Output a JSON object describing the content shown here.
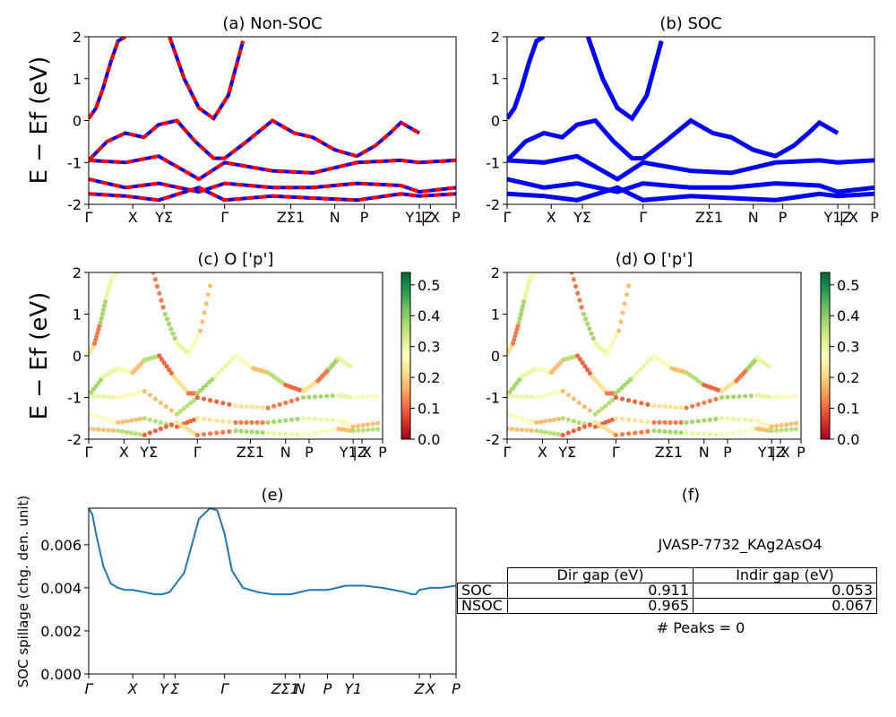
{
  "panels": {
    "a": {
      "title": "(a) Non-SOC",
      "ylabel": "E − Ef (eV)"
    },
    "b": {
      "title": "(b) SOC"
    },
    "c": {
      "title": "(c)  O ['p']",
      "ylabel": "E − Ef (eV)"
    },
    "d": {
      "title": "(d) O ['p']"
    },
    "e": {
      "title": "(e)",
      "ylabel": "SOC spillage (chg. den. unit)"
    },
    "f": {
      "title": "(f)"
    }
  },
  "kpath_labels": [
    "Γ",
    "X",
    "YΣ",
    "Γ",
    "ZΣ1",
    "N",
    "P",
    "Y1Z",
    "| X",
    "P"
  ],
  "kpath_labels_e": [
    "Γ",
    "X",
    "Y",
    "Σ",
    "Γ",
    "ZΣ1",
    "N",
    "P",
    "Y1",
    "Z",
    "X",
    "P"
  ],
  "colorbar": {
    "ticks": [
      "0.0",
      "0.1",
      "0.2",
      "0.3",
      "0.4",
      "0.5"
    ],
    "colormap": "RdYlGn"
  },
  "colors": {
    "nonsoc_a": "#0000ff",
    "nonsoc_b": "#ff0000",
    "soc": "#0000ff",
    "spillage": "#1f77b4"
  },
  "info": {
    "material": "JVASP-7732_KAg2AsO4",
    "col_headers": [
      "Dir gap (eV)",
      "Indir gap (eV)"
    ],
    "rows": [
      {
        "label": "SOC",
        "dir": "0.911",
        "indir": "0.053"
      },
      {
        "label": "NSOC",
        "dir": "0.965",
        "indir": "0.067"
      }
    ],
    "peaks": "# Peaks = 0"
  },
  "chart_data": [
    {
      "type": "line",
      "title": "(a) Non-SOC",
      "ylabel": "E − Ef (eV)",
      "ylim": [
        -2,
        2
      ],
      "yticks": [
        -2,
        -1,
        0,
        1,
        2
      ],
      "xticks": [
        "Γ",
        "X",
        "YΣ",
        "Γ",
        "ZΣ1",
        "N",
        "P",
        "Y1Z",
        "| X",
        "P"
      ],
      "series": [
        {
          "x": [
            0,
            0.02,
            0.04,
            0.06,
            0.08,
            0.1
          ],
          "y": [
            0.05,
            0.3,
            0.8,
            1.4,
            1.9,
            2.0
          ]
        },
        {
          "x": [
            0.22,
            0.26,
            0.3,
            0.34,
            0.38,
            0.42
          ],
          "y": [
            2.0,
            1.0,
            0.3,
            0.05,
            0.6,
            1.9
          ]
        },
        {
          "x": [
            0,
            0.05,
            0.1,
            0.15,
            0.19,
            0.24,
            0.29,
            0.34,
            0.37,
            0.43,
            0.5,
            0.56,
            0.61,
            0.67,
            0.73,
            0.78,
            0.82,
            0.85,
            0.9
          ],
          "y": [
            -0.95,
            -0.5,
            -0.3,
            -0.4,
            -0.1,
            0.0,
            -0.5,
            -0.9,
            -0.9,
            -0.5,
            0.0,
            -0.3,
            -0.4,
            -0.7,
            -0.85,
            -0.6,
            -0.3,
            -0.05,
            -0.3
          ]
        },
        {
          "x": [
            0,
            0.1,
            0.19,
            0.3,
            0.37,
            0.5,
            0.61,
            0.73,
            0.85,
            0.9,
            1.0
          ],
          "y": [
            -0.95,
            -1.0,
            -0.85,
            -1.4,
            -1.0,
            -1.2,
            -1.25,
            -1.0,
            -0.95,
            -1.0,
            -0.95
          ]
        },
        {
          "x": [
            0,
            0.1,
            0.19,
            0.3,
            0.37,
            0.5,
            0.61,
            0.73,
            0.85,
            0.9,
            1.0
          ],
          "y": [
            -1.4,
            -1.6,
            -1.5,
            -1.7,
            -1.5,
            -1.6,
            -1.6,
            -1.5,
            -1.55,
            -1.7,
            -1.6
          ]
        },
        {
          "x": [
            0,
            0.1,
            0.19,
            0.3,
            0.37,
            0.5,
            0.61,
            0.73,
            0.85,
            0.9,
            1.0
          ],
          "y": [
            -1.75,
            -1.8,
            -1.9,
            -1.6,
            -1.9,
            -1.8,
            -1.85,
            -1.9,
            -1.75,
            -1.8,
            -1.75
          ]
        }
      ]
    },
    {
      "type": "line",
      "title": "(b) SOC",
      "ylim": [
        -2,
        2
      ],
      "yticks": [
        -2,
        -1,
        0,
        1,
        2
      ],
      "xticks": [
        "Γ",
        "X",
        "YΣ",
        "Γ",
        "ZΣ1",
        "N",
        "P",
        "Y1Z",
        "| X",
        "P"
      ],
      "series": [
        {
          "x": [
            0,
            0.02,
            0.04,
            0.06,
            0.08,
            0.1
          ],
          "y": [
            0.05,
            0.3,
            0.8,
            1.4,
            1.9,
            2.0
          ]
        },
        {
          "x": [
            0.22,
            0.26,
            0.3,
            0.34,
            0.38,
            0.42
          ],
          "y": [
            2.0,
            1.0,
            0.3,
            0.05,
            0.6,
            1.9
          ]
        },
        {
          "x": [
            0,
            0.05,
            0.1,
            0.15,
            0.19,
            0.24,
            0.29,
            0.34,
            0.37,
            0.43,
            0.5,
            0.56,
            0.61,
            0.67,
            0.73,
            0.78,
            0.82,
            0.85,
            0.9
          ],
          "y": [
            -0.95,
            -0.5,
            -0.3,
            -0.4,
            -0.1,
            0.0,
            -0.5,
            -0.9,
            -0.9,
            -0.5,
            0.0,
            -0.3,
            -0.4,
            -0.7,
            -0.85,
            -0.6,
            -0.3,
            -0.05,
            -0.3
          ]
        },
        {
          "x": [
            0,
            0.1,
            0.19,
            0.3,
            0.37,
            0.5,
            0.61,
            0.73,
            0.85,
            0.9,
            1.0
          ],
          "y": [
            -0.95,
            -1.0,
            -0.85,
            -1.4,
            -1.0,
            -1.2,
            -1.25,
            -1.0,
            -0.95,
            -1.0,
            -0.95
          ]
        },
        {
          "x": [
            0,
            0.1,
            0.19,
            0.3,
            0.37,
            0.5,
            0.61,
            0.73,
            0.85,
            0.9,
            1.0
          ],
          "y": [
            -1.4,
            -1.6,
            -1.5,
            -1.7,
            -1.5,
            -1.6,
            -1.6,
            -1.5,
            -1.55,
            -1.7,
            -1.6
          ]
        },
        {
          "x": [
            0,
            0.1,
            0.19,
            0.3,
            0.37,
            0.5,
            0.61,
            0.73,
            0.85,
            0.9,
            1.0
          ],
          "y": [
            -1.75,
            -1.8,
            -1.9,
            -1.6,
            -1.9,
            -1.8,
            -1.85,
            -1.9,
            -1.75,
            -1.8,
            -1.75
          ]
        }
      ]
    },
    {
      "type": "scatter",
      "title": "(c)  O ['p']",
      "ylabel": "E − Ef (eV)",
      "ylim": [
        -2,
        2
      ],
      "yticks": [
        -2,
        -1,
        0,
        1,
        2
      ],
      "xticks": [
        "Γ",
        "X",
        "YΣ",
        "Γ",
        "ZΣ1",
        "N",
        "P",
        "Y1Z",
        "| X",
        "P"
      ],
      "colorbar_range": [
        0,
        0.54
      ],
      "weights": [
        0.22,
        0.12,
        0.38,
        0.3,
        0.28,
        0.18,
        0.36,
        0.1
      ]
    },
    {
      "type": "scatter",
      "title": "(d) O ['p']",
      "ylim": [
        -2,
        2
      ],
      "yticks": [
        -2,
        -1,
        0,
        1,
        2
      ],
      "xticks": [
        "Γ",
        "X",
        "YΣ",
        "Γ",
        "ZΣ1",
        "N",
        "P",
        "Y1Z",
        "| X",
        "P"
      ],
      "colorbar_range": [
        0,
        0.54
      ],
      "weights": [
        0.22,
        0.12,
        0.38,
        0.3,
        0.28,
        0.18,
        0.36,
        0.1
      ]
    },
    {
      "type": "line",
      "title": "(e)",
      "ylabel": "SOC spillage (chg. den. unit)",
      "ylim": [
        0,
        0.0077
      ],
      "yticks": [
        "0.000",
        "0.002",
        "0.004",
        "0.006"
      ],
      "xticks": [
        "Γ",
        "X",
        "Y",
        "Σ",
        "Γ",
        "ZΣ1",
        "N",
        "P",
        "Y1",
        "Z",
        "X",
        "P"
      ],
      "x": [
        0,
        0.01,
        0.02,
        0.04,
        0.06,
        0.08,
        0.1,
        0.12,
        0.15,
        0.18,
        0.2,
        0.22,
        0.26,
        0.3,
        0.33,
        0.35,
        0.37,
        0.39,
        0.42,
        0.46,
        0.5,
        0.55,
        0.6,
        0.65,
        0.7,
        0.75,
        0.8,
        0.86,
        0.88,
        0.89,
        0.9,
        0.93,
        0.96,
        1.0
      ],
      "y": [
        0.0077,
        0.0074,
        0.0065,
        0.005,
        0.0042,
        0.004,
        0.0039,
        0.0039,
        0.0038,
        0.0037,
        0.0037,
        0.0038,
        0.0047,
        0.0072,
        0.0077,
        0.0076,
        0.0065,
        0.0048,
        0.004,
        0.0038,
        0.0037,
        0.0037,
        0.0039,
        0.0039,
        0.0041,
        0.0041,
        0.004,
        0.0038,
        0.0037,
        0.0037,
        0.0039,
        0.004,
        0.004,
        0.0041
      ]
    }
  ]
}
